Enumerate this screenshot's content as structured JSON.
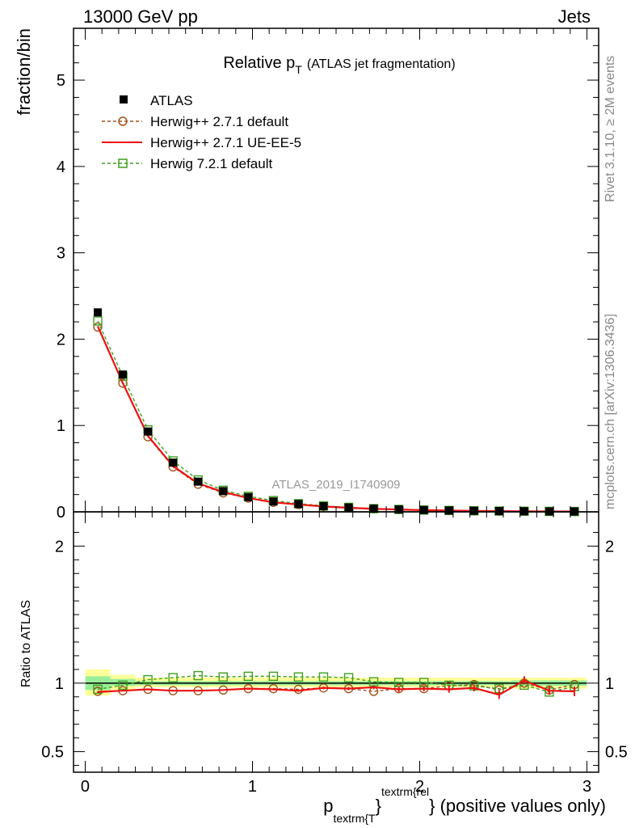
{
  "header": {
    "left": "13000 GeV pp",
    "right": "Jets"
  },
  "side_labels": {
    "top": "Rivet 3.1.10, ≥ 2M events",
    "bottom": "mcplots.cern.ch [arXiv:1306.3436]"
  },
  "watermark": "ATLAS_2019_I1740909",
  "chart_data": [
    {
      "type": "line",
      "title": "Relative p",
      "title_sub": "T",
      "title_note": "(ATLAS jet fragmentation)",
      "ylabel": "fraction/bin",
      "xlim": [
        -0.07,
        3.07
      ],
      "ylim": [
        0,
        5.6
      ],
      "yticks": [
        0,
        1,
        2,
        3,
        4,
        5
      ],
      "ytick_labels": [
        "0",
        "1",
        "2",
        "3",
        "4",
        "5"
      ],
      "x": [
        0.075,
        0.225,
        0.375,
        0.525,
        0.675,
        0.825,
        0.975,
        1.125,
        1.275,
        1.425,
        1.575,
        1.725,
        1.875,
        2.025,
        2.175,
        2.325,
        2.475,
        2.625,
        2.775,
        2.925
      ],
      "legend_position": "top-left",
      "series": [
        {
          "name": "ATLAS",
          "style": "data",
          "color": "#000000",
          "values": [
            2.31,
            1.59,
            0.93,
            0.57,
            0.35,
            0.24,
            0.17,
            0.12,
            0.09,
            0.065,
            0.05,
            0.037,
            0.028,
            0.021,
            0.016,
            0.012,
            0.009,
            0.007,
            0.005,
            0.004
          ]
        },
        {
          "name": "Herwig++ 2.7.1 default",
          "style": "circle-dashed",
          "color": "#a0521a",
          "values": [
            2.14,
            1.49,
            0.87,
            0.52,
            0.32,
            0.22,
            0.16,
            0.11,
            0.085,
            0.062,
            0.047,
            0.035,
            0.027,
            0.02,
            0.015,
            0.011,
            0.008,
            0.006,
            0.005,
            0.004
          ]
        },
        {
          "name": "Herwig++ 2.7.1 UE-EE-5",
          "style": "solid",
          "color": "#ee1111",
          "values": [
            2.15,
            1.49,
            0.88,
            0.53,
            0.33,
            0.23,
            0.16,
            0.11,
            0.085,
            0.062,
            0.047,
            0.035,
            0.027,
            0.02,
            0.015,
            0.011,
            0.008,
            0.006,
            0.005,
            0.004
          ]
        },
        {
          "name": "Herwig 7.2.1 default",
          "style": "square-dashed",
          "color": "#3f9f1f",
          "values": [
            2.21,
            1.57,
            0.95,
            0.59,
            0.37,
            0.25,
            0.18,
            0.13,
            0.095,
            0.069,
            0.052,
            0.037,
            0.028,
            0.021,
            0.016,
            0.012,
            0.009,
            0.007,
            0.005,
            0.004
          ]
        }
      ]
    },
    {
      "type": "line",
      "ylabel": "Ratio to ATLAS",
      "xlabel": "p",
      "xlabel_sub": "textrm{T",
      "xlabel_sup": "textrm{rel",
      "xlabel_brace": "}",
      "xlabel_tail": " (positive values only)",
      "xlim": [
        -0.07,
        3.07
      ],
      "ylim": [
        0.35,
        2.25
      ],
      "yticks": [
        0.5,
        1,
        2
      ],
      "ytick_labels": [
        "0.5",
        "1",
        "2"
      ],
      "xticks": [
        0,
        1,
        2,
        3
      ],
      "xtick_labels": [
        "0",
        "1",
        "2",
        "3"
      ],
      "reference": 1,
      "band_edges": [
        0,
        0.15,
        0.3,
        0.45,
        0.6,
        0.75,
        0.9,
        1.05,
        1.2,
        1.35,
        1.5,
        1.65,
        1.8,
        1.95,
        2.1,
        2.25,
        2.4,
        2.55,
        2.7,
        2.85,
        3.0
      ],
      "band_outer": [
        [
          0.91,
          1.1
        ],
        [
          0.95,
          1.06
        ],
        [
          0.97,
          1.04
        ],
        [
          0.97,
          1.04
        ],
        [
          0.97,
          1.04
        ],
        [
          0.97,
          1.04
        ],
        [
          0.97,
          1.04
        ],
        [
          0.97,
          1.04
        ],
        [
          0.97,
          1.04
        ],
        [
          0.97,
          1.04
        ],
        [
          0.97,
          1.04
        ],
        [
          0.97,
          1.04
        ],
        [
          0.97,
          1.04
        ],
        [
          0.97,
          1.04
        ],
        [
          0.97,
          1.04
        ],
        [
          0.97,
          1.04
        ],
        [
          0.97,
          1.04
        ],
        [
          0.96,
          1.04
        ],
        [
          0.96,
          1.04
        ],
        [
          0.96,
          1.04
        ]
      ],
      "band_inner": [
        [
          0.95,
          1.05
        ],
        [
          0.98,
          1.03
        ],
        [
          0.985,
          1.015
        ],
        [
          0.985,
          1.015
        ],
        [
          0.985,
          1.015
        ],
        [
          0.985,
          1.015
        ],
        [
          0.985,
          1.015
        ],
        [
          0.985,
          1.015
        ],
        [
          0.985,
          1.015
        ],
        [
          0.985,
          1.015
        ],
        [
          0.985,
          1.015
        ],
        [
          0.985,
          1.015
        ],
        [
          0.985,
          1.015
        ],
        [
          0.985,
          1.015
        ],
        [
          0.985,
          1.015
        ],
        [
          0.985,
          1.015
        ],
        [
          0.985,
          1.015
        ],
        [
          0.98,
          1.02
        ],
        [
          0.98,
          1.02
        ],
        [
          0.98,
          1.02
        ]
      ],
      "x": [
        0.075,
        0.225,
        0.375,
        0.525,
        0.675,
        0.825,
        0.975,
        1.125,
        1.275,
        1.425,
        1.575,
        1.725,
        1.875,
        2.025,
        2.175,
        2.325,
        2.475,
        2.625,
        2.775,
        2.925
      ],
      "series": [
        {
          "name": "Herwig++ 2.7.1 default",
          "style": "circle-dashed",
          "color": "#a0521a",
          "values": [
            0.94,
            0.945,
            0.955,
            0.945,
            0.945,
            0.95,
            0.96,
            0.96,
            0.955,
            0.965,
            0.96,
            0.94,
            0.96,
            0.96,
            0.98,
            0.99,
            0.95,
            1.0,
            0.95,
            0.99
          ]
        },
        {
          "name": "Herwig++ 2.7.1 UE-EE-5",
          "style": "solid",
          "color": "#ee1111",
          "values": [
            0.935,
            0.945,
            0.955,
            0.945,
            0.945,
            0.95,
            0.96,
            0.955,
            0.945,
            0.965,
            0.96,
            0.97,
            0.955,
            0.96,
            0.955,
            0.965,
            0.915,
            1.02,
            0.945,
            0.94
          ],
          "errors": [
            0.005,
            0.005,
            0.005,
            0.005,
            0.005,
            0.005,
            0.006,
            0.006,
            0.008,
            0.01,
            0.012,
            0.015,
            0.02,
            0.02,
            0.025,
            0.025,
            0.03,
            0.03,
            0.03,
            0.035
          ]
        },
        {
          "name": "Herwig 7.2.1 default",
          "style": "square-dashed",
          "color": "#3f9f1f",
          "values": [
            0.955,
            0.985,
            1.025,
            1.04,
            1.055,
            1.045,
            1.05,
            1.05,
            1.045,
            1.045,
            1.04,
            1.01,
            1.005,
            1.005,
            0.985,
            0.98,
            0.96,
            0.985,
            0.935,
            0.975
          ]
        }
      ]
    }
  ]
}
